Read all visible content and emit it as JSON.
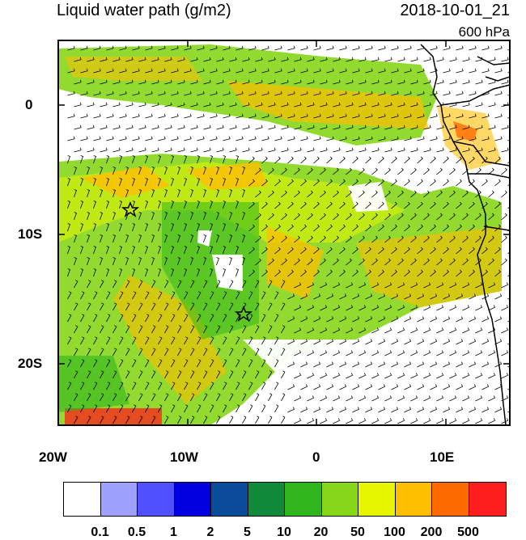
{
  "title": "Liquid water path (g/m2)",
  "datetime": "2018-10-01_21",
  "level": "600 hPa",
  "lon_labels": [
    "20W",
    "10W",
    "0",
    "10E"
  ],
  "lat_labels": [
    "0",
    "10S",
    "20S"
  ],
  "colorbar": {
    "colors": [
      "#ffffff",
      "#a0a0ff",
      "#5050ff",
      "#0000e0",
      "#0a4c9a",
      "#118a3c",
      "#2eb61c",
      "#86d619",
      "#e6f500",
      "#ffbe00",
      "#ff6a00",
      "#ff1e1e"
    ],
    "labels": [
      "0.1",
      "0.5",
      "1",
      "2",
      "5",
      "10",
      "20",
      "50",
      "100",
      "200",
      "500"
    ]
  },
  "markers": [
    {
      "name": "star-1",
      "lon": -14.5,
      "lat": -8
    },
    {
      "name": "star-2",
      "lon": -5.5,
      "lat": -16
    }
  ]
}
